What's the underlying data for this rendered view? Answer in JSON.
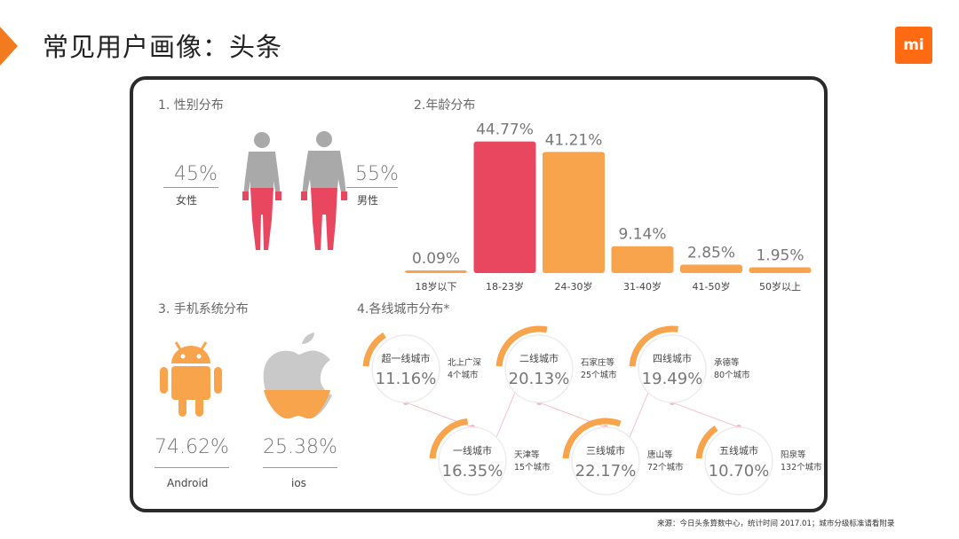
{
  "slide": {
    "title": "常见用户画像：头条",
    "logo_text": "mi",
    "source": "来源：今日头条算数中心，统计时间 2017.01；城市分级标准请看附录"
  },
  "colors": {
    "pink": "#e8475f",
    "orange": "#f7a44c",
    "light_orange": "#f9c79a",
    "gray": "#c9c9c9",
    "body_gray": "#a9a9a9"
  },
  "gender": {
    "title": "1. 性别分布",
    "female_value": "45%",
    "female_label": "女性",
    "male_value": "55%",
    "male_label": "男性"
  },
  "os": {
    "title": "3. 手机系统分布",
    "android_value": "74.62%",
    "android_label": "Android",
    "ios_value": "25.38%",
    "ios_label": "ios"
  },
  "chart_data": [
    {
      "type": "bar",
      "title": "2.年龄分布",
      "categories": [
        "18岁以下",
        "18-23岁",
        "24-30岁",
        "31-40岁",
        "41-50岁",
        "50岁以上"
      ],
      "values": [
        0.09,
        44.77,
        41.21,
        9.14,
        2.85,
        1.95
      ],
      "value_labels": [
        "0.09%",
        "44.77%",
        "41.21%",
        "9.14%",
        "2.85%",
        "1.95%"
      ],
      "bar_colors": [
        "#f7a44c",
        "#e8475f",
        "#f7a44c",
        "#f7a44c",
        "#f7a44c",
        "#f7a44c"
      ],
      "ylim": [
        0,
        50
      ]
    },
    {
      "type": "table",
      "title": "4.各线城市分布",
      "title_mark": "*",
      "cities": [
        {
          "tier": "超一线城市",
          "value": 11.16,
          "value_label": "11.16%",
          "examples": "北上广深",
          "count": "4个城市"
        },
        {
          "tier": "二线城市",
          "value": 20.13,
          "value_label": "20.13%",
          "examples": "石家庄等",
          "count": "25个城市"
        },
        {
          "tier": "四线城市",
          "value": 19.49,
          "value_label": "19.49%",
          "examples": "承德等",
          "count": "80个城市"
        },
        {
          "tier": "一线城市",
          "value": 16.35,
          "value_label": "16.35%",
          "examples": "天津等",
          "count": "15个城市"
        },
        {
          "tier": "三线城市",
          "value": 22.17,
          "value_label": "22.17%",
          "examples": "唐山等",
          "count": "72个城市"
        },
        {
          "tier": "五线城市",
          "value": 10.7,
          "value_label": "10.70%",
          "examples": "阳泉等",
          "count": "132个城市"
        }
      ]
    }
  ]
}
